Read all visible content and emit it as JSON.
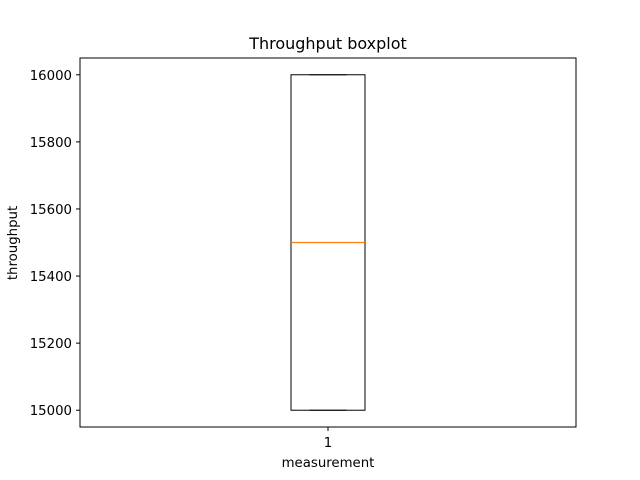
{
  "chart_data": {
    "type": "boxplot",
    "title": "Throughput boxplot",
    "xlabel": "measurement",
    "ylabel": "throughput",
    "categories": [
      "1"
    ],
    "boxes": [
      {
        "category": "1",
        "whisker_low": 15000,
        "q1": 15000,
        "median": 15500,
        "q3": 16000,
        "whisker_high": 16000
      }
    ],
    "ylim": [
      14950,
      16050
    ],
    "yticks": [
      15000,
      15200,
      15400,
      15600,
      15800,
      16000
    ],
    "grid": false,
    "median_color": "#ff7f0e",
    "box_color": "#000000"
  }
}
